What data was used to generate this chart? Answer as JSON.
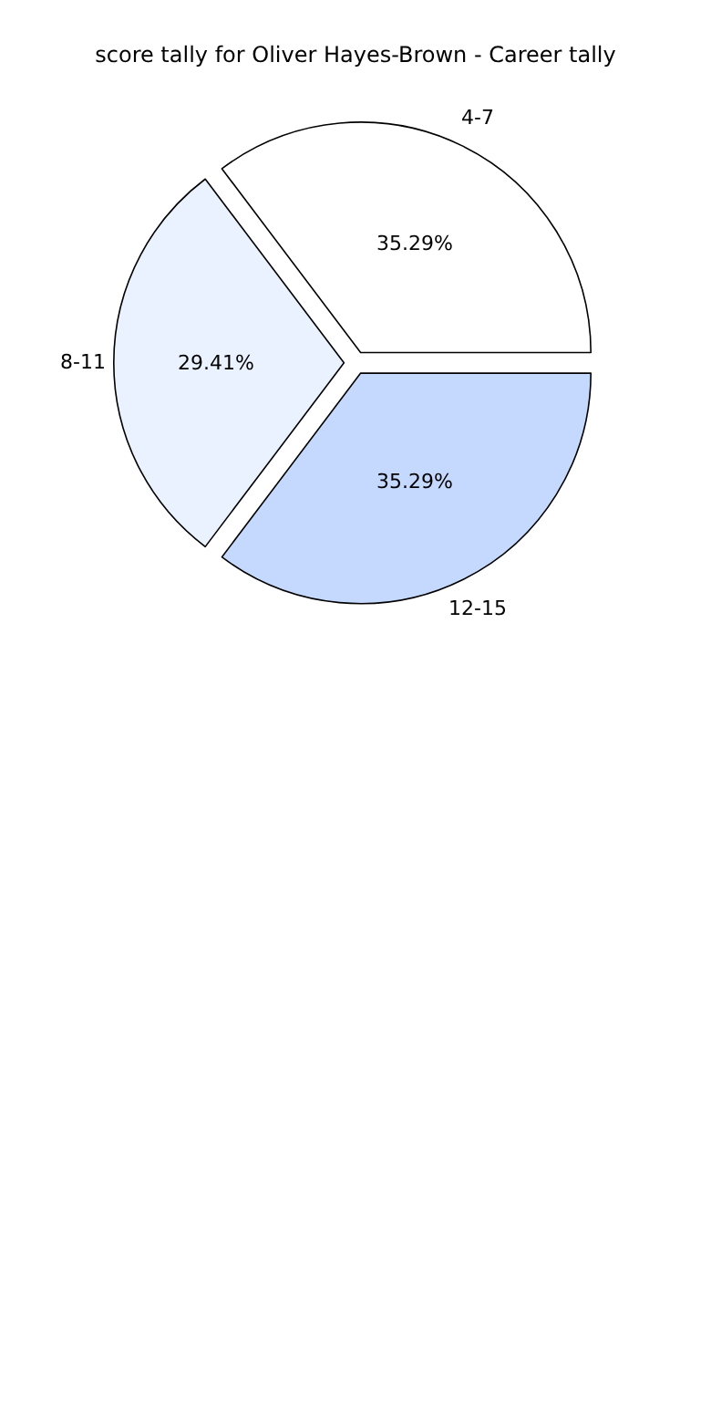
{
  "chart_data": {
    "type": "pie",
    "title": "score tally for Oliver Hayes-Brown - Career tally",
    "categories": [
      "4-7",
      "8-11",
      "12-15"
    ],
    "values": [
      35.29,
      29.41,
      35.29
    ],
    "value_labels": [
      "35.29%",
      "29.41%",
      "35.29%"
    ],
    "colors": [
      "#ffffff",
      "#eaf1ff",
      "#c5d9ff"
    ],
    "legend": false
  }
}
